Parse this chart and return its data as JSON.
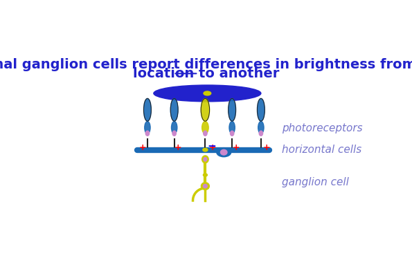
{
  "title_line1": "Retinal ganglion cells report differences in brightness from one",
  "title_line2": "location to another",
  "title_color": "#2222cc",
  "title_fontsize": 14,
  "underline_word": "location",
  "bg_color": "#ffffff",
  "label_photoreceptors": "photoreceptors",
  "label_horizontal": "horizontal cells",
  "label_ganglion": "ganglion cell",
  "label_color": "#7777cc",
  "label_fontsize": 11,
  "disk_color": "#2222cc",
  "disk_center_color": "#cccc00",
  "photoreceptor_color_blue": "#1a6ab5",
  "photoreceptor_color_yellow": "#cccc00",
  "horizontal_cell_color": "#1a6ab5",
  "bipolar_color": "#cccc00",
  "ganglion_color": "#cccc00",
  "axon_color": "#cccc00",
  "plus_color": "#ff0000",
  "minus_color": "#0000ff",
  "nucleus_color": "#cc88cc",
  "outline_color": "#222222"
}
